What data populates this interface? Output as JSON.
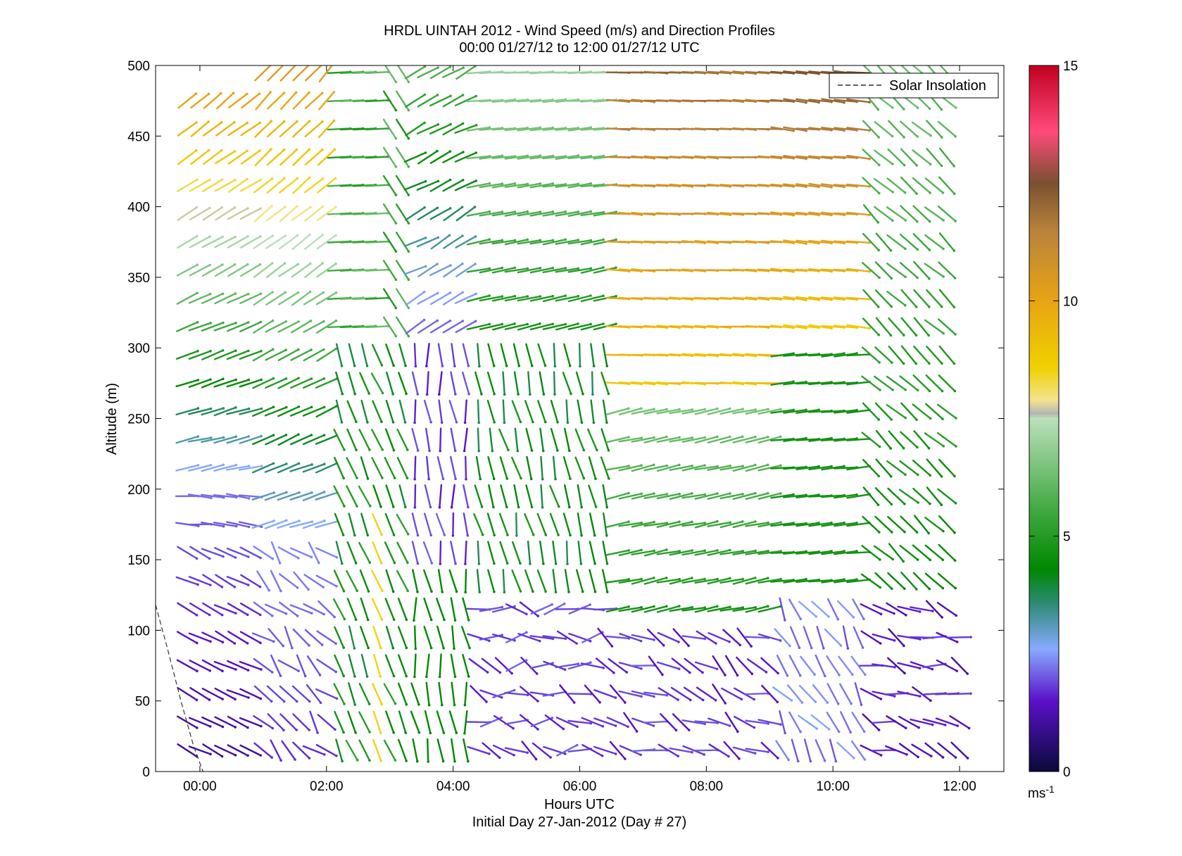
{
  "chart_data": {
    "type": "wind-barb-profile",
    "title": "HRDL UINTAH 2012 - Wind Speed (m/s) and Direction Profiles",
    "subtitle": "00:00 01/27/12 to 12:00 01/27/12  UTC",
    "xlabel": "Hours UTC",
    "xlabel_note": "Initial Day 27-Jan-2012 (Day # 27)",
    "ylabel": "Altitude (m)",
    "xlim_hours": [
      -0.7,
      12.7
    ],
    "ylim": [
      0,
      500
    ],
    "x_ticks": [
      {
        "value": 0,
        "label": "00:00"
      },
      {
        "value": 2,
        "label": "02:00"
      },
      {
        "value": 4,
        "label": "04:00"
      },
      {
        "value": 6,
        "label": "06:00"
      },
      {
        "value": 8,
        "label": "08:00"
      },
      {
        "value": 10,
        "label": "10:00"
      },
      {
        "value": 12,
        "label": "12:00"
      }
    ],
    "y_ticks": [
      0,
      50,
      100,
      150,
      200,
      250,
      300,
      350,
      400,
      450,
      500
    ],
    "legend": {
      "entries": [
        "Solar Insolation"
      ],
      "placement": "top-right"
    },
    "colorbar": {
      "min": 0,
      "max": 15,
      "ticks": [
        0,
        5,
        10,
        15
      ],
      "unit": "ms-1",
      "unit_base": "ms",
      "unit_exp": "-1",
      "stops": [
        {
          "value": 0,
          "color": "#0a0a3a"
        },
        {
          "value": 1.5,
          "color": "#5a10c8"
        },
        {
          "value": 2.6,
          "color": "#88aaff"
        },
        {
          "value": 3.6,
          "color": "#2a8a70"
        },
        {
          "value": 4.3,
          "color": "#008800"
        },
        {
          "value": 5.6,
          "color": "#44aa44"
        },
        {
          "value": 7.5,
          "color": "#bbe0bb"
        },
        {
          "value": 7.6,
          "color": "#b4b4b4"
        },
        {
          "value": 7.9,
          "color": "#f3e48c"
        },
        {
          "value": 8.6,
          "color": "#f0d000"
        },
        {
          "value": 10.0,
          "color": "#e8a414"
        },
        {
          "value": 11.5,
          "color": "#b8823c"
        },
        {
          "value": 12.5,
          "color": "#7a5030"
        },
        {
          "value": 13.6,
          "color": "#ff4a7a"
        },
        {
          "value": 15.0,
          "color": "#c00020"
        }
      ]
    },
    "solar_insolation": {
      "x_hours": [
        -0.7,
        -0.5,
        -0.3,
        -0.1,
        0.05
      ],
      "altitude": [
        118,
        85,
        50,
        18,
        0
      ]
    },
    "wind_profiles": {
      "times_hours": [
        -0.2,
        0.0,
        0.2,
        0.4,
        0.6,
        0.8,
        1.0,
        1.2,
        1.4,
        1.6,
        1.8,
        2.0,
        2.2,
        2.4,
        2.6,
        2.8,
        3.0,
        3.2,
        3.4,
        3.6,
        3.8,
        4.0,
        4.2,
        4.4,
        4.6,
        4.8,
        5.0,
        5.2,
        5.4,
        5.6,
        5.8,
        6.0,
        6.2,
        6.4,
        6.6,
        6.8,
        7.0,
        7.2,
        7.4,
        7.6,
        7.8,
        8.0,
        8.2,
        8.4,
        8.6,
        8.8,
        9.0,
        9.2,
        9.4,
        9.6,
        9.8,
        10.0,
        10.2,
        10.4,
        10.6,
        10.8,
        11.0,
        11.2,
        11.4,
        11.6,
        11.8,
        12.0
      ],
      "altitudes_m": [
        15,
        35,
        55,
        75,
        95,
        115,
        135,
        155,
        175,
        195,
        215,
        235,
        255,
        275,
        295,
        315,
        335,
        355,
        375,
        395,
        415,
        435,
        455,
        475,
        495
      ]
    }
  }
}
